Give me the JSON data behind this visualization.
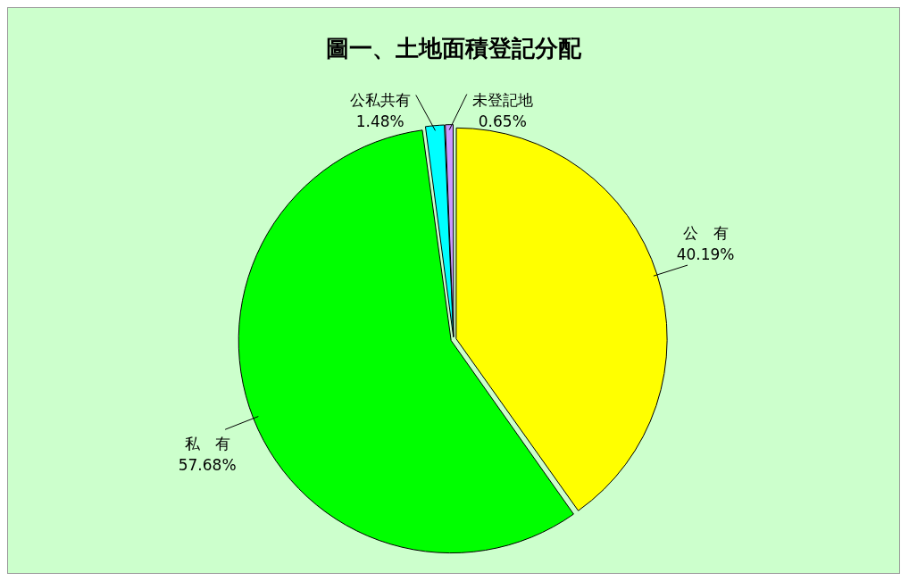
{
  "chart_data": {
    "type": "pie",
    "title": "圖一、土地面積登記分配",
    "categories": [
      "公　有",
      "私　有",
      "公私共有",
      "未登記地"
    ],
    "values": [
      40.19,
      57.68,
      1.48,
      0.65
    ],
    "colors": [
      "#ffff00",
      "#00ff00",
      "#00ffff",
      "#cc99ff"
    ],
    "value_labels": [
      "40.19%",
      "57.68%",
      "1.48%",
      "0.65%"
    ],
    "legend": false
  }
}
